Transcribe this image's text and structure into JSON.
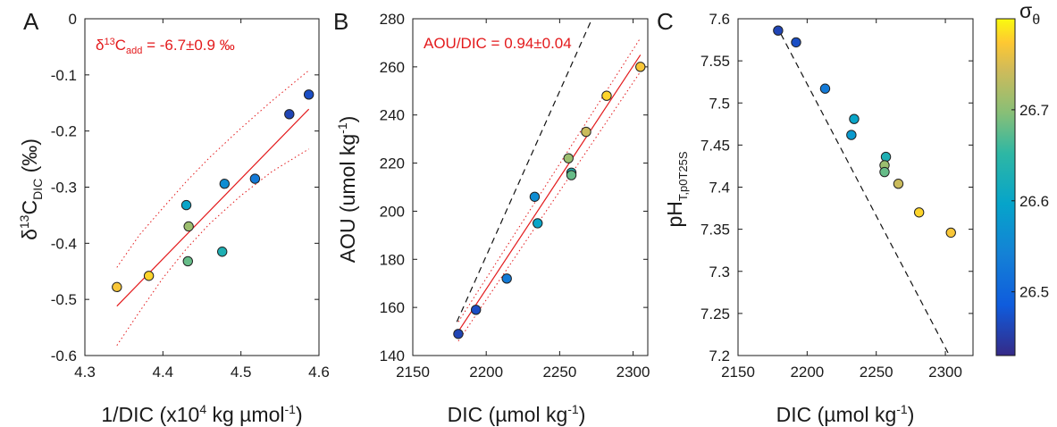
{
  "chart_data": [
    {
      "type": "scatter",
      "panel_label": "A",
      "xlabel": "1/DIC (x10⁴ kg µmol⁻¹)",
      "ylabel": "δ¹³C_DIC (‰)",
      "xlim": [
        4.3,
        4.6
      ],
      "ylim": [
        -0.6,
        0
      ],
      "xticks": [
        4.3,
        4.4,
        4.5,
        4.6
      ],
      "yticks": [
        -0.6,
        -0.5,
        -0.4,
        -0.3,
        -0.2,
        -0.1,
        0
      ],
      "xtick_labels": [
        "4.3",
        "4.4",
        "4.5",
        "4.6"
      ],
      "ytick_labels": [
        "-0.6",
        "-0.5",
        "-0.4",
        "-0.3",
        "-0.2",
        "-0.1",
        "0"
      ],
      "annotation": "δ¹³C_add = -6.7±0.9 ‰",
      "points": [
        {
          "x": 4.341,
          "y": -0.478,
          "c": 26.77
        },
        {
          "x": 4.382,
          "y": -0.458,
          "c": 26.78
        },
        {
          "x": 4.432,
          "y": -0.432,
          "c": 26.68
        },
        {
          "x": 4.433,
          "y": -0.37,
          "c": 26.71
        },
        {
          "x": 4.43,
          "y": -0.332,
          "c": 26.6
        },
        {
          "x": 4.476,
          "y": -0.415,
          "c": 26.63
        },
        {
          "x": 4.479,
          "y": -0.294,
          "c": 26.56
        },
        {
          "x": 4.518,
          "y": -0.285,
          "c": 26.53
        },
        {
          "x": 4.562,
          "y": -0.17,
          "c": 26.46
        },
        {
          "x": 4.587,
          "y": -0.135,
          "c": 26.47
        }
      ],
      "fit_line": {
        "x": [
          4.341,
          4.587
        ],
        "y": [
          -0.512,
          -0.161
        ]
      },
      "ci_upper": {
        "x": [
          4.341,
          4.37,
          4.4,
          4.43,
          4.46,
          4.5,
          4.54,
          4.587
        ],
        "y": [
          -0.443,
          -0.385,
          -0.337,
          -0.29,
          -0.247,
          -0.195,
          -0.146,
          -0.092
        ]
      },
      "ci_lower": {
        "x": [
          4.341,
          4.37,
          4.4,
          4.43,
          4.46,
          4.5,
          4.54,
          4.587
        ],
        "y": [
          -0.582,
          -0.522,
          -0.462,
          -0.41,
          -0.365,
          -0.315,
          -0.272,
          -0.232
        ]
      },
      "grid": false
    },
    {
      "type": "scatter",
      "panel_label": "B",
      "xlabel": "DIC (µmol kg⁻¹)",
      "ylabel": "AOU (umol kg⁻¹)",
      "xlim": [
        2150,
        2310
      ],
      "ylim": [
        140,
        280
      ],
      "xticks": [
        2150,
        2200,
        2250,
        2300
      ],
      "yticks": [
        140,
        160,
        180,
        200,
        220,
        240,
        260,
        280
      ],
      "xtick_labels": [
        "2150",
        "2200",
        "2250",
        "2300"
      ],
      "ytick_labels": [
        "140",
        "160",
        "180",
        "200",
        "220",
        "240",
        "260",
        "280"
      ],
      "annotation": "AOU/DIC = 0.94±0.04",
      "points": [
        {
          "x": 2181,
          "y": 149,
          "c": 26.46
        },
        {
          "x": 2193,
          "y": 159,
          "c": 26.47
        },
        {
          "x": 2214,
          "y": 172,
          "c": 26.53
        },
        {
          "x": 2233,
          "y": 206,
          "c": 26.56
        },
        {
          "x": 2235,
          "y": 195,
          "c": 26.6
        },
        {
          "x": 2256,
          "y": 222,
          "c": 26.71
        },
        {
          "x": 2258,
          "y": 216,
          "c": 26.63
        },
        {
          "x": 2258,
          "y": 215,
          "c": 26.68
        },
        {
          "x": 2268,
          "y": 233,
          "c": 26.74
        },
        {
          "x": 2282,
          "y": 248,
          "c": 26.78
        },
        {
          "x": 2305,
          "y": 260,
          "c": 26.77
        }
      ],
      "fit_line": {
        "x": [
          2181,
          2305
        ],
        "y": [
          150,
          265
        ]
      },
      "ci_upper": {
        "x": [
          2181,
          2305
        ],
        "y": [
          154,
          272
        ]
      },
      "ci_lower": {
        "x": [
          2181,
          2305
        ],
        "y": [
          146,
          258
        ]
      },
      "dashed_line": {
        "x": [
          2180,
          2272
        ],
        "y": [
          154,
          280
        ]
      },
      "grid": false
    },
    {
      "type": "scatter",
      "panel_label": "C",
      "xlabel": "DIC (µmol kg⁻¹)",
      "ylabel": "pH_T,p0T25S",
      "xlim": [
        2150,
        2320
      ],
      "ylim": [
        7.2,
        7.6
      ],
      "xticks": [
        2150,
        2200,
        2250,
        2300
      ],
      "yticks": [
        7.2,
        7.25,
        7.3,
        7.35,
        7.4,
        7.45,
        7.5,
        7.55,
        7.6
      ],
      "xtick_labels": [
        "2150",
        "2200",
        "2250",
        "2300"
      ],
      "ytick_labels": [
        "7.2",
        "7.25",
        "7.3",
        "7.35",
        "7.4",
        "7.45",
        "7.5",
        "7.55",
        "7.6"
      ],
      "points": [
        {
          "x": 2179,
          "y": 7.586,
          "c": 26.46
        },
        {
          "x": 2192,
          "y": 7.572,
          "c": 26.47
        },
        {
          "x": 2213,
          "y": 7.517,
          "c": 26.53
        },
        {
          "x": 2234,
          "y": 7.481,
          "c": 26.6
        },
        {
          "x": 2232,
          "y": 7.462,
          "c": 26.58
        },
        {
          "x": 2257,
          "y": 7.436,
          "c": 26.63
        },
        {
          "x": 2256,
          "y": 7.426,
          "c": 26.71
        },
        {
          "x": 2256,
          "y": 7.418,
          "c": 26.68
        },
        {
          "x": 2266,
          "y": 7.404,
          "c": 26.74
        },
        {
          "x": 2281,
          "y": 7.37,
          "c": 26.78
        },
        {
          "x": 2304,
          "y": 7.346,
          "c": 26.77
        }
      ],
      "dashed_line": {
        "x": [
          2181,
          2302
        ],
        "y": [
          7.582,
          7.203
        ]
      },
      "grid": false
    }
  ],
  "colorbar": {
    "label": "σ_θ",
    "range": [
      26.43,
      26.8
    ],
    "ticks": [
      26.5,
      26.6,
      26.7
    ],
    "tick_labels": [
      "26.5",
      "26.6",
      "26.7"
    ],
    "colormap": "parula"
  },
  "colors": {
    "fit": "#e31a1c",
    "dashed": "#111111",
    "axis": "#1a1a1a",
    "marker_edge": "#222222"
  }
}
